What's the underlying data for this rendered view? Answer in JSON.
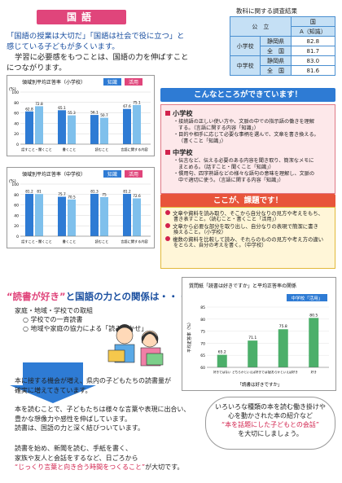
{
  "title": "国語",
  "lead": {
    "line1": "「国語の授業は大切だ」「国語は社会で役に立つ」と",
    "line2": "感じている子どもが多くいます。",
    "line3": "学習に必要感をもつことは、国語の力を伸ばすこと",
    "line4": "につながります。"
  },
  "charts": [
    {
      "title": "領域別平均正答率（小学校）",
      "legend": [
        "知識",
        "活用"
      ],
      "ylabel": "(%)",
      "categories": [
        "話すこと・聞くこと",
        "書くこと",
        "読むこと",
        "言語に関する内容"
      ],
      "series": [
        {
          "name": "知識",
          "values": [
            62.8,
            65.1,
            56.1,
            67.6
          ]
        },
        {
          "name": "活用",
          "values": [
            72.8,
            55.3,
            50.7,
            75.1
          ]
        }
      ]
    },
    {
      "title": "領域別平均正答率（中学校）",
      "legend": [
        "知識",
        "活用"
      ],
      "ylabel": "(%)",
      "categories": [
        "話すこと・聞くこと",
        "書くこと",
        "読むこと",
        "言語に関する内容"
      ],
      "series": [
        {
          "name": "知識",
          "values": [
            81.2,
            75.7,
            81.3,
            81.2
          ]
        },
        {
          "name": "活用",
          "values": [
            81.0,
            70.5,
            75.0,
            72.6
          ]
        }
      ]
    }
  ],
  "chart_data": [
    {
      "type": "bar",
      "title": "領域別平均正答率（小学校）",
      "categories": [
        "話すこと・聞くこと",
        "書くこと",
        "読むこと",
        "言語に関する内容"
      ],
      "series": [
        {
          "name": "知識",
          "values": [
            62.8,
            65.1,
            56.1,
            67.6
          ]
        },
        {
          "name": "活用",
          "values": [
            72.8,
            55.3,
            50.7,
            75.1
          ]
        }
      ],
      "ylim": [
        0,
        100
      ]
    },
    {
      "type": "bar",
      "title": "領域別平均正答率（中学校）",
      "categories": [
        "話すこと・聞くこと",
        "書くこと",
        "読むこと",
        "言語に関する内容"
      ],
      "series": [
        {
          "name": "知識",
          "values": [
            81.2,
            75.7,
            81.3,
            81.2
          ]
        },
        {
          "name": "活用",
          "values": [
            81.0,
            70.5,
            75.0,
            72.6
          ]
        }
      ],
      "ylim": [
        0,
        100
      ]
    },
    {
      "type": "bar",
      "title": "質問紙「読書は好きですか」と平均正答率の関係",
      "categories": [
        "好きではない",
        "どちらかといえば好きではない",
        "どちらかといえば好き",
        "好き"
      ],
      "values": [
        65.2,
        71.1,
        75.8,
        80.5
      ],
      "ylim": [
        60,
        85
      ]
    }
  ],
  "survey": {
    "title": "教科に関する調査結果",
    "h1": "公　立",
    "h2": "国",
    "h3": "A（知識）",
    "rows": [
      {
        "school": "小学校",
        "area": "静岡県",
        "val": "82.8"
      },
      {
        "school": "",
        "area": "全　国",
        "val": "81.7"
      },
      {
        "school": "中学校",
        "area": "静岡県",
        "val": "83.0"
      },
      {
        "school": "",
        "area": "全　国",
        "val": "81.6"
      }
    ]
  },
  "good": {
    "heading": "こんなところができています！",
    "elem": "小学校",
    "e1": "・接続語の正しい使い方や、文脈の中での指示語の働きを理解",
    "e1b": "する。（言語に関する内容「知識」）",
    "e2": "・目的や相手に応じて必要な事柄を選んで、文章を書き換える。",
    "e2b": "（書くこと「知識」）",
    "mid": "中学校",
    "m1": "・伝言など、伝える必要のある内容を聞き取り、簡潔なメモに",
    "m1b": "まとめる。（話すこと・聞くこと「知識」）",
    "m2": "・慣用句、四字熟語などの様々な語句の意味を理解し、文脈の",
    "m2b": "中で適切に使う。（言語に関する内容「知識」）"
  },
  "issue": {
    "heading": "ここが、課題です！",
    "i1": "文章や資料を読み取り、そこから自分なりの見方や考えをもち、",
    "i1b": "書き表すこと。（読むこと・書くこと「活用」）",
    "i2": "文章から必要な部分を取り出し、自分なりの表現で簡潔に書き",
    "i2b": "換えること。（小学校）",
    "i3": "複数の資料を比較して読み、それらのものの見方や考え方の違い",
    "i3b": "をとらえ、自分の考えを書く。（中学校）"
  },
  "question": {
    "q1": "“読書が好き”",
    "q2": "と国語の力との関係は・・・？"
  },
  "family": {
    "h": "家庭・地域・学校での取組",
    "l1": "○ 学校での一斉読書",
    "l2": "○ 地域や家庭の協力による「読み聞かせ」"
  },
  "p1": {
    "l1": "本に接する機会が増え、県内の子どもたちの読書量が",
    "l2": "確実に増えてきています。"
  },
  "p2": {
    "l1": "本を読むことで、子どもたちは様々な言葉や表現に出合い、",
    "l2": "豊かな想像力や感性を伸ばしています。",
    "l3": "読書は、国語の力と深く結びついています。"
  },
  "p3": {
    "l1": "読書を始め、新聞を読む、手紙を書く、",
    "l2": "家族や友人と会話をするなど、日ごろから",
    "l3": "“じっくり言葉と向き合う時間をつくること”",
    "l4": "が大切です。"
  },
  "rchart": {
    "title": "質問紙「読書は好きですか」と平均正答率の関係",
    "tag": "中学校「活用」",
    "ylabel": "平均正答率（%）",
    "caption": "「読書は好きですか」"
  },
  "speech": {
    "l1": "いろいろな種類の本を読む働き掛けや",
    "l2": "心を動かされた本の紹介など",
    "l3": "“本を話題にした子どもとの会話”",
    "l4": "を大切にしましょう。"
  },
  "colors": {
    "pink": "#e0457b",
    "blue": "#2e7bd4",
    "lightblue": "#7fc0ec",
    "red": "#d2224d",
    "green": "#4caf6a"
  }
}
